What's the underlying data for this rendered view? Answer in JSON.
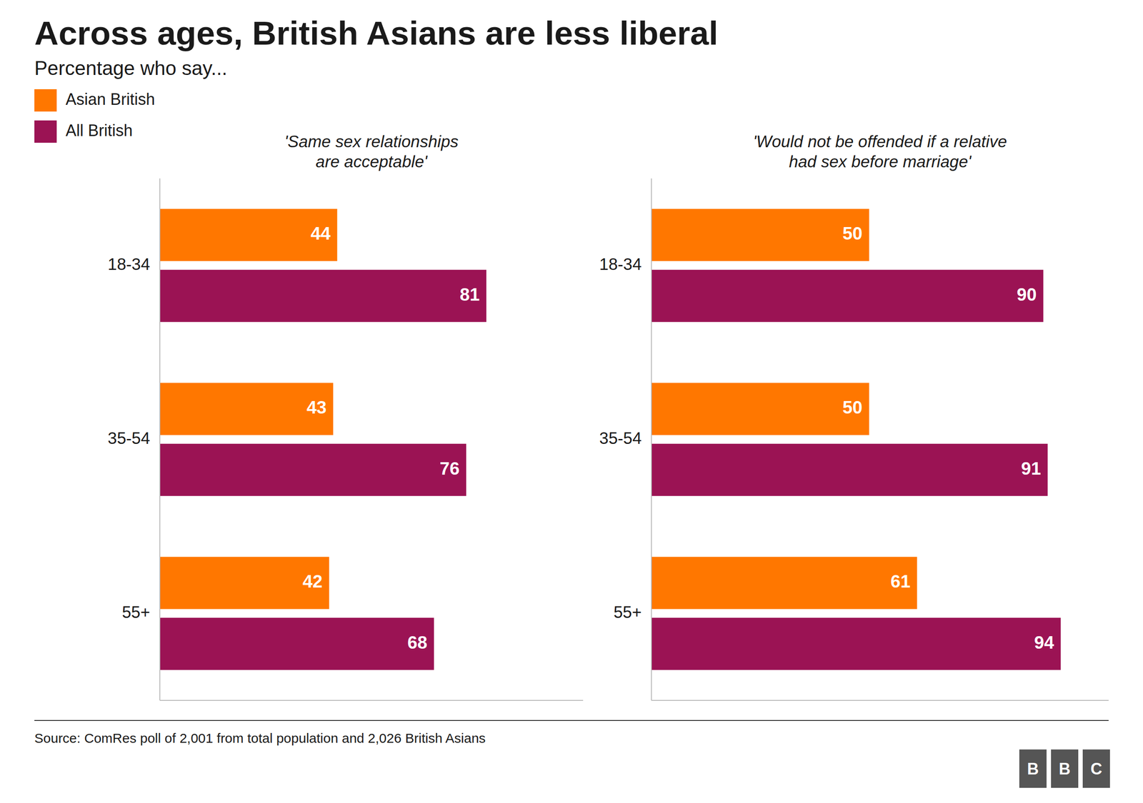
{
  "title": "Across ages, British Asians are less liberal",
  "subtitle": "Percentage who say...",
  "annotations": [
    "Source: ComRes poll of 2,001 from total population and 2,026 British Asians",
    "B",
    "B",
    "C"
  ],
  "chart_data": [
    {
      "type": "bar",
      "orientation": "horizontal",
      "title": "'Same sex relationships\nare acceptable'",
      "categories": [
        "18-34",
        "35-54",
        "55+"
      ],
      "series": [
        {
          "name": "Asian British",
          "color": "#FF7700",
          "values": [
            44,
            43,
            42
          ]
        },
        {
          "name": "All British",
          "color": "#9B1354",
          "values": [
            81,
            76,
            68
          ]
        }
      ],
      "xlim": [
        0,
        105
      ],
      "data_labels": true,
      "tick_labels": "y",
      "grid": false,
      "legend": "upper left"
    },
    {
      "type": "bar",
      "orientation": "horizontal",
      "title": "'Would not be offended if a relative\nhad sex before marriage'",
      "categories": [
        "18-34",
        "35-54",
        "55+"
      ],
      "series": [
        {
          "name": "Asian British",
          "color": "#FF7700",
          "values": [
            50,
            50,
            61
          ]
        },
        {
          "name": "All British",
          "color": "#9B1354",
          "values": [
            90,
            91,
            94
          ]
        }
      ],
      "xlim": [
        0,
        105
      ],
      "data_labels": true,
      "tick_labels": "y",
      "grid": false
    }
  ]
}
